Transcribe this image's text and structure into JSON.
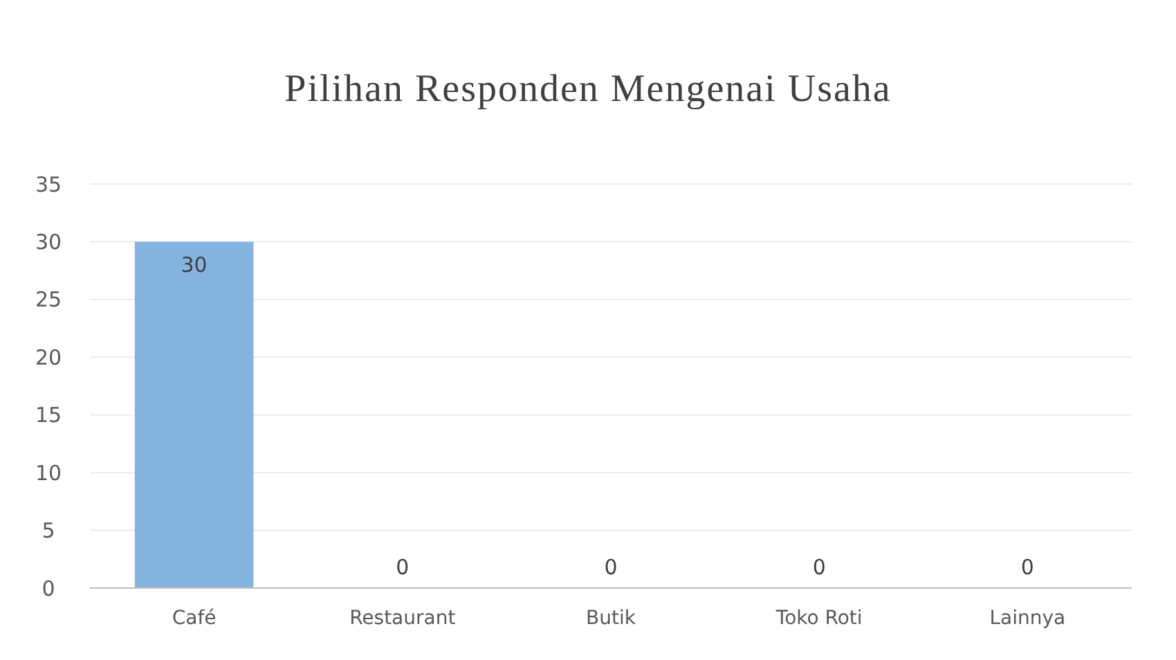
{
  "chart_data": {
    "type": "bar",
    "title": "Pilihan Responden Mengenai Usaha",
    "categories": [
      "Café",
      "Restaurant",
      "Butik",
      "Toko Roti",
      "Lainnya"
    ],
    "values": [
      30,
      0,
      0,
      0,
      0
    ],
    "color": "#85b4e0",
    "ylim": [
      0,
      35
    ],
    "yticks": [
      0,
      5,
      10,
      15,
      20,
      25,
      30,
      35
    ],
    "grid": "y",
    "data_labels": true
  }
}
